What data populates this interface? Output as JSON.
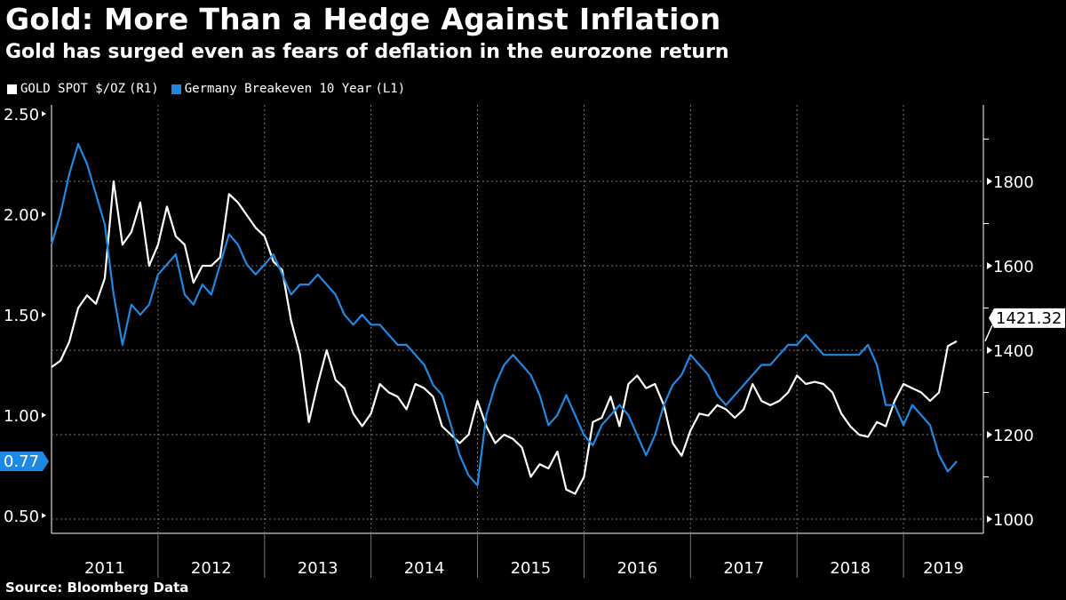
{
  "chart_data": {
    "type": "line",
    "title": "Gold: More Than a Hedge Against Inflation",
    "subtitle": "Gold has surged even as fears of deflation in the eurozone return",
    "source": "Source: Bloomberg Data",
    "x_start": 2011.0,
    "x_step": 0.08333,
    "xlim": [
      2011.0,
      2019.75
    ],
    "x_tick_labels": [
      "2011",
      "2012",
      "2013",
      "2014",
      "2015",
      "2016",
      "2017",
      "2018",
      "2019"
    ],
    "left_axis": {
      "ylim": [
        0.45,
        2.55
      ],
      "ticks": [
        "0.50",
        "1.00",
        "1.50",
        "2.00",
        "2.50"
      ]
    },
    "right_axis": {
      "ylim": [
        975,
        1925
      ],
      "ticks": [
        "1000",
        "1200",
        "1400",
        "1600",
        "1800"
      ]
    },
    "grid": true,
    "legend_placement": "top-left",
    "series": [
      {
        "name": "GOLD SPOT $/OZ",
        "axis_tag": "(R1)",
        "axis": "right",
        "color": "#ffffff",
        "last_label": "1421.32",
        "values": [
          1360,
          1375,
          1420,
          1500,
          1530,
          1510,
          1570,
          1800,
          1650,
          1680,
          1750,
          1600,
          1650,
          1740,
          1670,
          1650,
          1560,
          1600,
          1600,
          1620,
          1770,
          1750,
          1720,
          1690,
          1670,
          1610,
          1590,
          1470,
          1390,
          1230,
          1320,
          1400,
          1330,
          1310,
          1250,
          1220,
          1250,
          1320,
          1300,
          1290,
          1260,
          1320,
          1310,
          1290,
          1220,
          1200,
          1180,
          1200,
          1280,
          1220,
          1180,
          1200,
          1190,
          1170,
          1100,
          1130,
          1120,
          1160,
          1070,
          1060,
          1100,
          1230,
          1240,
          1290,
          1220,
          1320,
          1340,
          1310,
          1320,
          1270,
          1180,
          1150,
          1210,
          1250,
          1245,
          1270,
          1260,
          1240,
          1260,
          1320,
          1280,
          1270,
          1280,
          1300,
          1340,
          1320,
          1325,
          1320,
          1300,
          1250,
          1220,
          1200,
          1195,
          1230,
          1220,
          1280,
          1320,
          1310,
          1300,
          1280,
          1300,
          1410,
          1421.32
        ]
      },
      {
        "name": "Germany Breakeven 10 Year",
        "axis_tag": "(L1)",
        "axis": "left",
        "color": "#1e88e5",
        "last_label": "0.77",
        "values": [
          1.85,
          2.0,
          2.2,
          2.35,
          2.25,
          2.1,
          1.95,
          1.6,
          1.35,
          1.55,
          1.5,
          1.55,
          1.7,
          1.75,
          1.8,
          1.6,
          1.55,
          1.65,
          1.6,
          1.75,
          1.9,
          1.85,
          1.75,
          1.7,
          1.75,
          1.8,
          1.7,
          1.6,
          1.65,
          1.65,
          1.7,
          1.65,
          1.6,
          1.5,
          1.45,
          1.5,
          1.45,
          1.45,
          1.4,
          1.35,
          1.35,
          1.3,
          1.25,
          1.15,
          1.1,
          0.95,
          0.8,
          0.7,
          0.65,
          1.0,
          1.15,
          1.25,
          1.3,
          1.25,
          1.2,
          1.1,
          0.95,
          1.0,
          1.1,
          1.0,
          0.9,
          0.85,
          0.95,
          1.0,
          1.05,
          1.0,
          0.9,
          0.8,
          0.9,
          1.05,
          1.15,
          1.2,
          1.3,
          1.25,
          1.2,
          1.1,
          1.05,
          1.1,
          1.15,
          1.2,
          1.25,
          1.25,
          1.3,
          1.35,
          1.35,
          1.4,
          1.35,
          1.3,
          1.3,
          1.3,
          1.3,
          1.3,
          1.35,
          1.25,
          1.05,
          1.05,
          0.95,
          1.05,
          1.0,
          0.95,
          0.8,
          0.72,
          0.77
        ]
      }
    ]
  }
}
